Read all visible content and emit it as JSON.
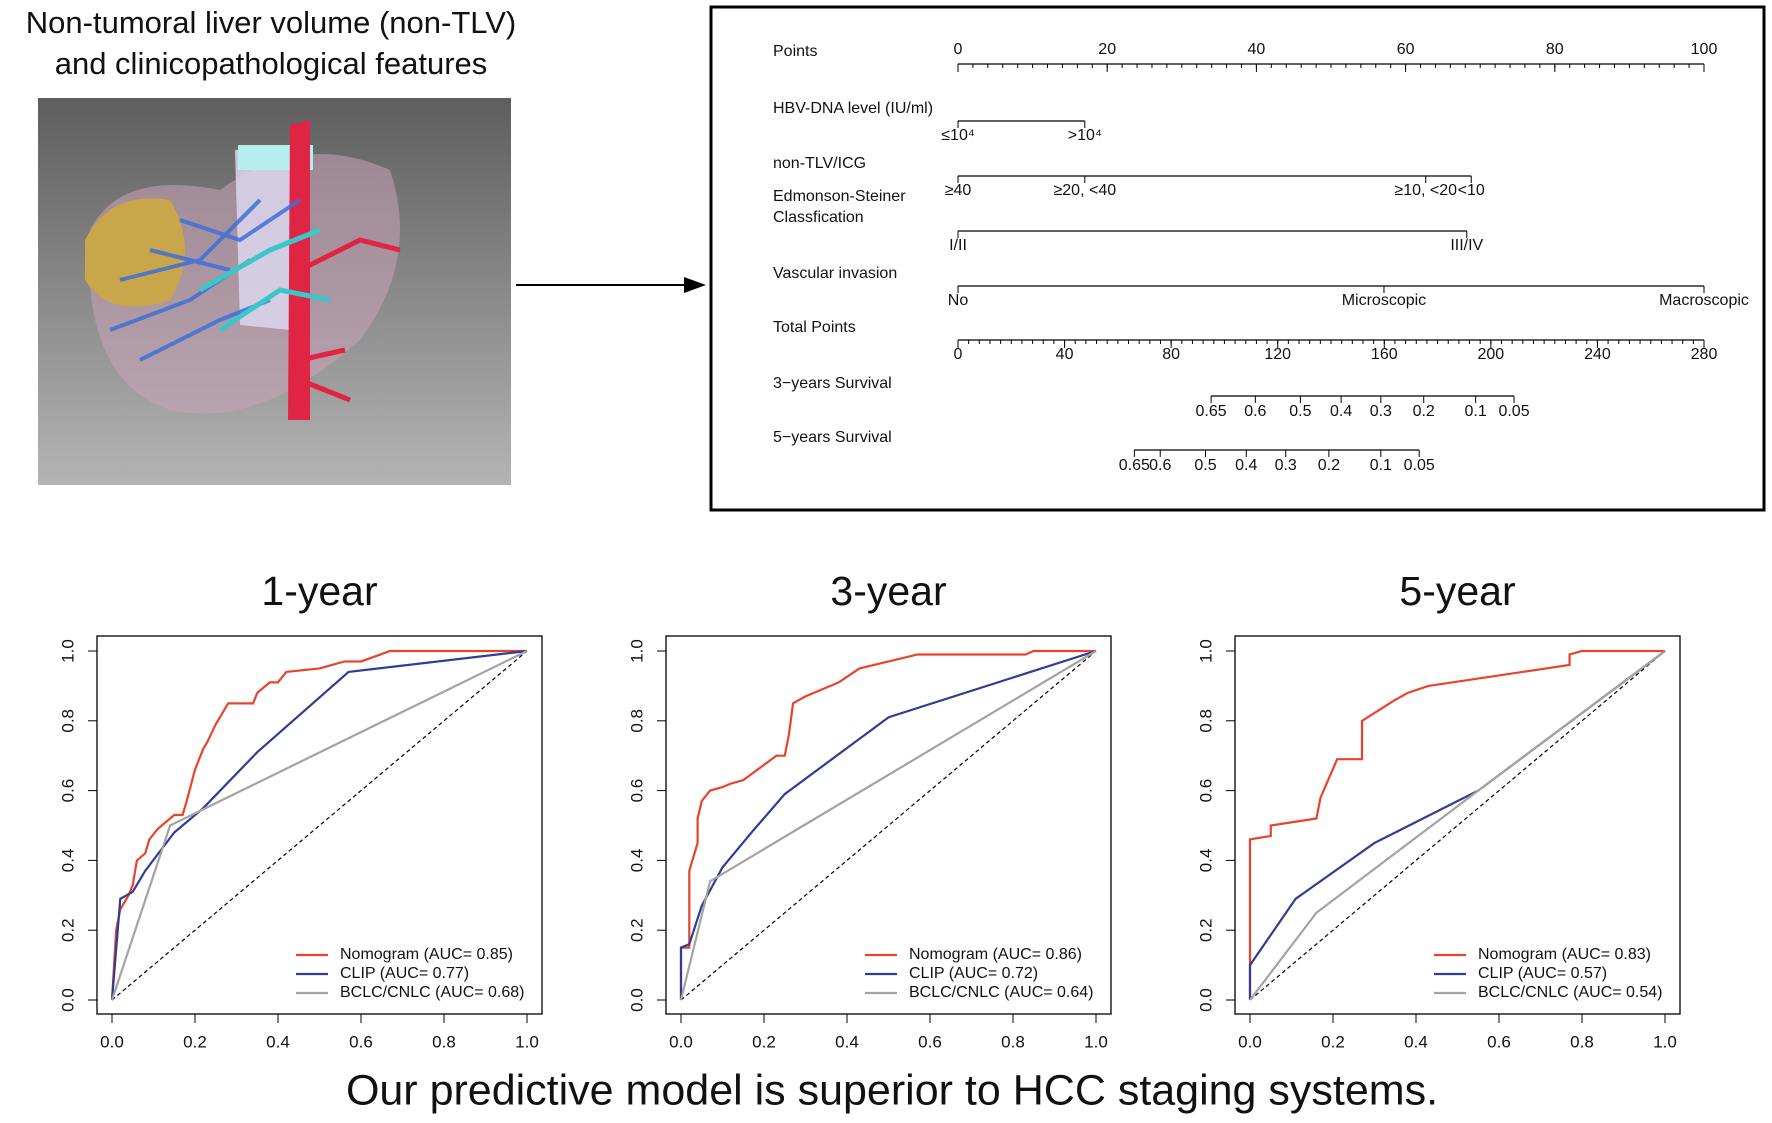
{
  "header": {
    "title_lines": [
      "Non-tumoral liver volume (non-TLV)",
      "and clinicopathological features"
    ]
  },
  "nomogram": {
    "rows": [
      {
        "label": "Points",
        "lim": [
          0,
          100
        ],
        "ticks": [
          0,
          20,
          40,
          60,
          80,
          100
        ],
        "minor_tick_step": 2,
        "tick_labels": "above"
      },
      {
        "label": "HBV-DNA level (IU/ml)",
        "levels": [
          {
            "label": "≤10⁴",
            "points": 0
          },
          {
            "label": ">10⁴",
            "points": 17
          }
        ]
      },
      {
        "label": "non-TLV/ICG",
        "levels": [
          {
            "label": "≥40",
            "points": 0
          },
          {
            "label": "≥20, <40",
            "points": 17
          },
          {
            "label": "≥10, <20",
            "points": 62.7
          },
          {
            "label": "<10",
            "points": 68.8
          }
        ]
      },
      {
        "label": [
          "Edmonson-Steiner",
          "Classfication"
        ],
        "levels": [
          {
            "label": "I/II",
            "points": 0
          },
          {
            "label": "III/IV",
            "points": 68.2
          }
        ]
      },
      {
        "label": "Vascular invasion",
        "levels": [
          {
            "label": "No",
            "points": 0
          },
          {
            "label": "Microscopic",
            "points": 57.1
          },
          {
            "label": "Macroscopic",
            "points": 100
          }
        ]
      },
      {
        "label": "Total Points",
        "lim": [
          0,
          280
        ],
        "ticks": [
          0,
          40,
          80,
          120,
          160,
          200,
          240,
          280
        ],
        "minor_tick_step": 4,
        "tick_labels": "below"
      },
      {
        "label": "3−years Survival",
        "probabilities": [
          {
            "value": 0.65,
            "total_points": 95
          },
          {
            "value": 0.6,
            "total_points": 111.6
          },
          {
            "value": 0.5,
            "total_points": 128.5
          },
          {
            "value": 0.4,
            "total_points": 143.8
          },
          {
            "value": 0.3,
            "total_points": 158.7
          },
          {
            "value": 0.2,
            "total_points": 174.8
          },
          {
            "value": 0.1,
            "total_points": 194.3
          },
          {
            "value": 0.05,
            "total_points": 208.7
          }
        ]
      },
      {
        "label": "5−years Survival",
        "probabilities": [
          {
            "value": 0.65,
            "total_points": 66.2
          },
          {
            "value": 0.6,
            "total_points": 75.9
          },
          {
            "value": 0.5,
            "total_points": 92.9
          },
          {
            "value": 0.4,
            "total_points": 108.2
          },
          {
            "value": 0.3,
            "total_points": 123
          },
          {
            "value": 0.2,
            "total_points": 139.2
          },
          {
            "value": 0.1,
            "total_points": 158.7
          },
          {
            "value": 0.05,
            "total_points": 173.1
          }
        ]
      }
    ]
  },
  "chart_data": [
    {
      "type": "line",
      "title": "1-year",
      "xlim": [
        0,
        1
      ],
      "ylim": [
        0,
        1
      ],
      "xticks": [
        {
          "value": 0,
          "label": "0.0"
        },
        0.2,
        0.4,
        0.6,
        0.8,
        {
          "value": 1,
          "label": "1.0"
        }
      ],
      "yticks": [
        {
          "value": 0,
          "label": "0.0"
        },
        0.2,
        0.4,
        0.6,
        0.8,
        {
          "value": 1,
          "label": "1.0"
        }
      ],
      "diagonal": true,
      "legend": "bottom-right",
      "series": [
        {
          "name": "Nomogram (AUC= 0.85)",
          "color": "#e8432d",
          "x": [
            0,
            0.005,
            0.01,
            0.02,
            0.03,
            0.04,
            0.05,
            0.06,
            0.08,
            0.09,
            0.11,
            0.13,
            0.15,
            0.17,
            0.18,
            0.2,
            0.22,
            0.23,
            0.25,
            0.28,
            0.34,
            0.35,
            0.38,
            0.4,
            0.42,
            0.5,
            0.56,
            0.6,
            0.67,
            1
          ],
          "values": [
            0,
            0.1,
            0.2,
            0.26,
            0.28,
            0.3,
            0.33,
            0.4,
            0.42,
            0.46,
            0.49,
            0.51,
            0.53,
            0.53,
            0.57,
            0.66,
            0.72,
            0.74,
            0.79,
            0.85,
            0.85,
            0.88,
            0.91,
            0.91,
            0.94,
            0.95,
            0.97,
            0.97,
            1,
            1
          ]
        },
        {
          "name": "CLIP (AUC= 0.77)",
          "color": "#2f3d95",
          "x": [
            0,
            0.02,
            0.05,
            0.08,
            0.15,
            0.22,
            0.35,
            0.57,
            1
          ],
          "values": [
            0,
            0.29,
            0.31,
            0.37,
            0.48,
            0.55,
            0.71,
            0.94,
            1
          ]
        },
        {
          "name": "BCLC/CNLC (AUC= 0.68)",
          "color": "#a3a3a3",
          "x": [
            0,
            0.14,
            1
          ],
          "values": [
            0,
            0.5,
            1
          ]
        }
      ]
    },
    {
      "type": "line",
      "title": "3-year",
      "xlim": [
        0,
        1
      ],
      "ylim": [
        0,
        1
      ],
      "xticks": [
        {
          "value": 0,
          "label": "0.0"
        },
        0.2,
        0.4,
        0.6,
        0.8,
        {
          "value": 1,
          "label": "1.0"
        }
      ],
      "yticks": [
        {
          "value": 0,
          "label": "0.0"
        },
        0.2,
        0.4,
        0.6,
        0.8,
        {
          "value": 1,
          "label": "1.0"
        }
      ],
      "diagonal": true,
      "legend": "bottom-right",
      "series": [
        {
          "name": "Nomogram (AUC= 0.86)",
          "color": "#e8432d",
          "x": [
            0,
            0,
            0.02,
            0.02,
            0.04,
            0.04,
            0.05,
            0.07,
            0.1,
            0.12,
            0.15,
            0.23,
            0.25,
            0.26,
            0.27,
            0.3,
            0.38,
            0.43,
            0.5,
            0.57,
            0.83,
            0.85,
            1
          ],
          "values": [
            0,
            0.15,
            0.15,
            0.37,
            0.45,
            0.52,
            0.57,
            0.6,
            0.61,
            0.62,
            0.63,
            0.7,
            0.7,
            0.76,
            0.85,
            0.87,
            0.91,
            0.95,
            0.97,
            0.99,
            0.99,
            1,
            1
          ]
        },
        {
          "name": "CLIP (AUC= 0.72)",
          "color": "#2f3d95",
          "x": [
            0,
            0,
            0.02,
            0.05,
            0.1,
            0.17,
            0.25,
            0.5,
            1
          ],
          "values": [
            0,
            0.15,
            0.16,
            0.27,
            0.38,
            0.48,
            0.59,
            0.81,
            1
          ]
        },
        {
          "name": "BCLC/CNLC (AUC= 0.64)",
          "color": "#a3a3a3",
          "x": [
            0,
            0.07,
            1
          ],
          "values": [
            0,
            0.34,
            1
          ]
        }
      ]
    },
    {
      "type": "line",
      "title": "5-year",
      "xlim": [
        0,
        1
      ],
      "ylim": [
        0,
        1
      ],
      "xticks": [
        {
          "value": 0,
          "label": "0.0"
        },
        0.2,
        0.4,
        0.6,
        0.8,
        {
          "value": 1,
          "label": "1.0"
        }
      ],
      "yticks": [
        {
          "value": 0,
          "label": "0.0"
        },
        0.2,
        0.4,
        0.6,
        0.8,
        {
          "value": 1,
          "label": "1.0"
        }
      ],
      "diagonal": true,
      "legend": "bottom-right",
      "series": [
        {
          "name": "Nomogram (AUC= 0.83)",
          "color": "#e8432d",
          "x": [
            0,
            0,
            0.05,
            0.05,
            0.16,
            0.17,
            0.21,
            0.27,
            0.27,
            0.35,
            0.38,
            0.43,
            0.77,
            0.77,
            0.8,
            1
          ],
          "values": [
            0,
            0.46,
            0.47,
            0.5,
            0.52,
            0.58,
            0.69,
            0.69,
            0.8,
            0.86,
            0.88,
            0.9,
            0.96,
            0.99,
            1,
            1
          ]
        },
        {
          "name": "CLIP (AUC= 0.57)",
          "color": "#2f3d95",
          "x": [
            0,
            0,
            0.11,
            0.3,
            0.55,
            1
          ],
          "values": [
            0,
            0.1,
            0.29,
            0.45,
            0.6,
            1
          ]
        },
        {
          "name": "BCLC/CNLC (AUC= 0.54)",
          "color": "#a3a3a3",
          "x": [
            0,
            0.16,
            0.55,
            1
          ],
          "values": [
            0,
            0.25,
            0.6,
            1
          ]
        }
      ]
    }
  ],
  "footer": {
    "text": "Our predictive model is superior to HCC staging systems."
  }
}
